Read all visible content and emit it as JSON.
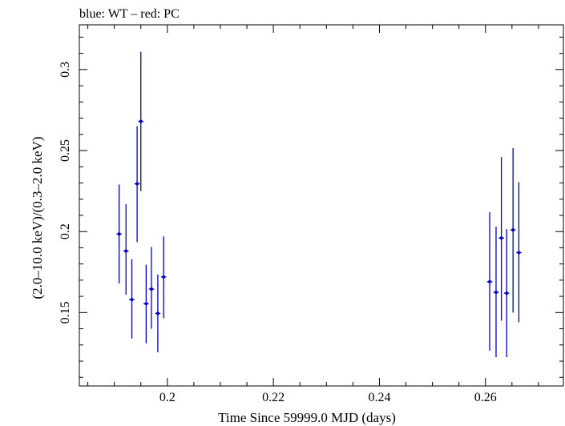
{
  "chart_data": {
    "type": "scatter",
    "title": "blue: WT – red: PC",
    "xlabel": "Time Since 59999.0 MJD (days)",
    "ylabel": "(2.0–10.0 keV)/(0.3–2.0 keV)",
    "xlim": [
      0.1834,
      0.2747
    ],
    "ylim": [
      0.1047,
      0.3276
    ],
    "x_ticks": [
      0.2,
      0.22,
      0.24,
      0.26
    ],
    "x_tick_labels": [
      "0.2",
      "0.22",
      "0.24",
      "0.26"
    ],
    "y_ticks": [
      0.15,
      0.2,
      0.25,
      0.3
    ],
    "y_tick_labels": [
      "0.15",
      "0.2",
      "0.25",
      "0.3"
    ],
    "grid": false,
    "colors": {
      "WT": "#0000cc",
      "axes": "#000000"
    },
    "series": [
      {
        "name": "WT",
        "points": [
          {
            "x": 0.1909,
            "y": 0.1985,
            "xerr": 0.0005,
            "ylo": 0.168,
            "yhi": 0.229
          },
          {
            "x": 0.1922,
            "y": 0.188,
            "xerr": 0.0005,
            "ylo": 0.161,
            "yhi": 0.217
          },
          {
            "x": 0.1933,
            "y": 0.158,
            "xerr": 0.0005,
            "ylo": 0.134,
            "yhi": 0.183
          },
          {
            "x": 0.1943,
            "y": 0.2295,
            "xerr": 0.0005,
            "ylo": 0.1935,
            "yhi": 0.265
          },
          {
            "x": 0.195,
            "y": 0.268,
            "xerr": 0.0005,
            "ylo": 0.225,
            "yhi": 0.311
          },
          {
            "x": 0.196,
            "y": 0.1555,
            "xerr": 0.0005,
            "ylo": 0.131,
            "yhi": 0.1795
          },
          {
            "x": 0.197,
            "y": 0.1645,
            "xerr": 0.0005,
            "ylo": 0.14,
            "yhi": 0.1905
          },
          {
            "x": 0.1982,
            "y": 0.1495,
            "xerr": 0.0005,
            "ylo": 0.1255,
            "yhi": 0.1735
          },
          {
            "x": 0.1993,
            "y": 0.172,
            "xerr": 0.0005,
            "ylo": 0.1465,
            "yhi": 0.197
          },
          {
            "x": 0.2608,
            "y": 0.169,
            "xerr": 0.0005,
            "ylo": 0.1265,
            "yhi": 0.212
          },
          {
            "x": 0.262,
            "y": 0.1625,
            "xerr": 0.0005,
            "ylo": 0.1225,
            "yhi": 0.203
          },
          {
            "x": 0.263,
            "y": 0.196,
            "xerr": 0.0005,
            "ylo": 0.145,
            "yhi": 0.246
          },
          {
            "x": 0.264,
            "y": 0.162,
            "xerr": 0.0005,
            "ylo": 0.1225,
            "yhi": 0.2015
          },
          {
            "x": 0.2652,
            "y": 0.201,
            "xerr": 0.0005,
            "ylo": 0.15,
            "yhi": 0.2515
          },
          {
            "x": 0.2663,
            "y": 0.187,
            "xerr": 0.0005,
            "ylo": 0.144,
            "yhi": 0.2305
          }
        ]
      }
    ]
  }
}
